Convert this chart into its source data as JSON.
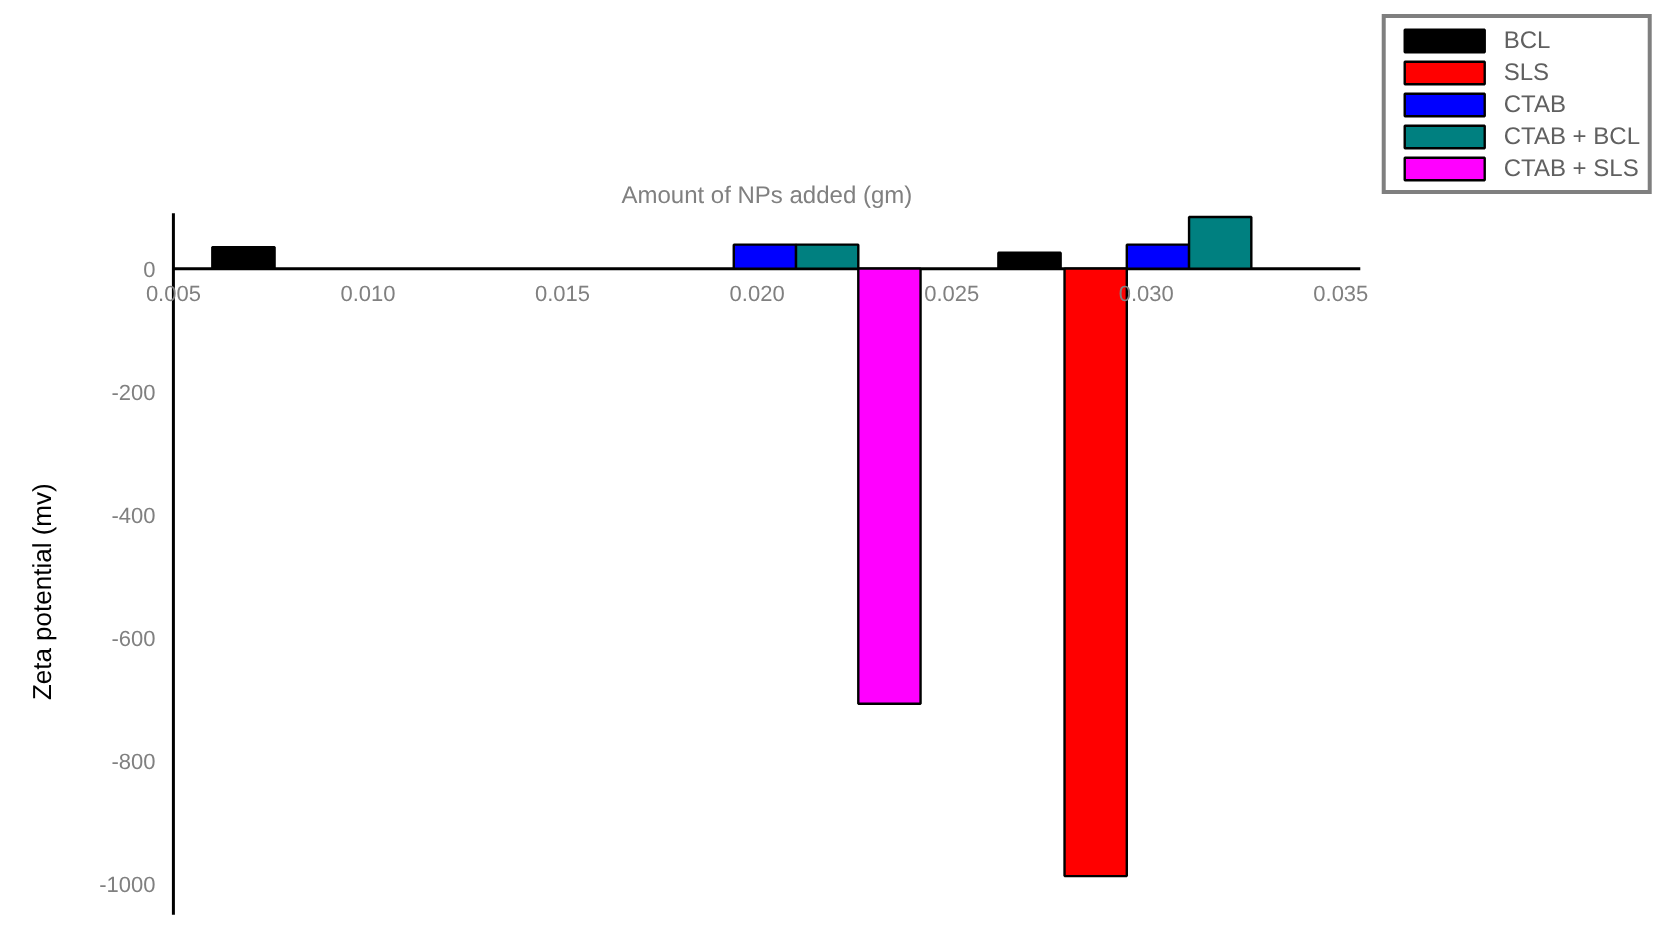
{
  "chart_data": {
    "type": "bar",
    "xlabel": "Amount of NPs added (gm)",
    "ylabel": "Zeta potential (mv)",
    "xlim": [
      0.005,
      0.0355
    ],
    "xticks": [
      {
        "value": 0.005,
        "label": "0.005"
      },
      {
        "value": 0.01,
        "label": "0.010"
      },
      {
        "value": 0.015,
        "label": "0.015"
      },
      {
        "value": 0.02,
        "label": "0.020"
      },
      {
        "value": 0.025,
        "label": "0.025"
      },
      {
        "value": 0.03,
        "label": "0.030"
      },
      {
        "value": 0.035,
        "label": "0.035"
      }
    ],
    "ylim": [
      -1050,
      90
    ],
    "yticks": [
      0,
      -200,
      -400,
      -600,
      -800,
      -1000
    ],
    "series": [
      {
        "name": "BCL",
        "color": "#000000",
        "x": [
          0.0068,
          0.027
        ],
        "values": [
          35,
          26
        ]
      },
      {
        "name": "SLS",
        "color": "#ff0000",
        "x": [
          0.0287
        ],
        "values": [
          -987
        ]
      },
      {
        "name": "CTAB",
        "color": "#0000ff",
        "x": [
          0.0202,
          0.0303
        ],
        "values": [
          39,
          39
        ]
      },
      {
        "name": "CTAB + BCL",
        "color": "#008080",
        "x": [
          0.0218,
          0.0319
        ],
        "values": [
          39,
          84
        ]
      },
      {
        "name": "CTAB + SLS",
        "color": "#ff00ff",
        "x": [
          0.0234
        ],
        "values": [
          -707
        ]
      }
    ],
    "grid": false,
    "legend": "top right"
  }
}
